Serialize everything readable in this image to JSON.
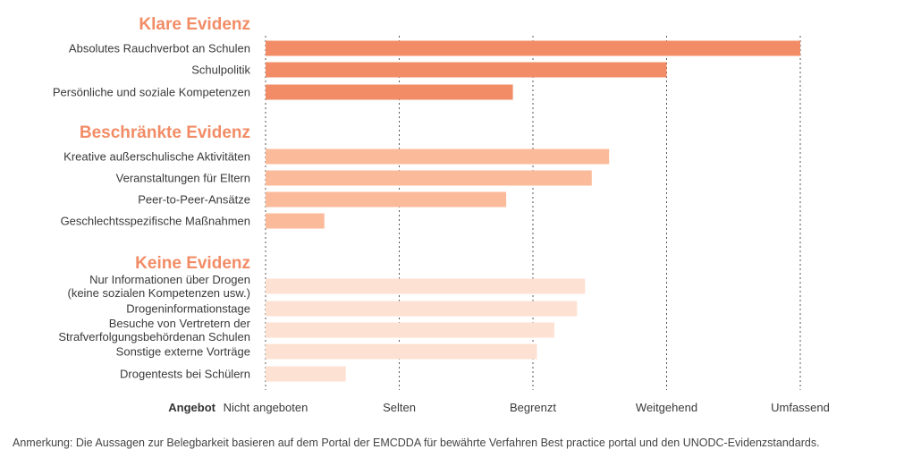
{
  "chart_data": {
    "type": "bar",
    "orientation": "horizontal",
    "x_axis_title": "Angebot",
    "x_ticks": [
      "Nicht angeboten",
      "Selten",
      "Begrenzt",
      "Weitgehend",
      "Umfassend"
    ],
    "xlim": [
      0,
      4
    ],
    "grid": "vertical dashed",
    "groups": [
      {
        "title": "Klare Evidenz",
        "bar_color": "#f28c66",
        "label_color": "#f28c66",
        "items": [
          {
            "label": [
              "Absolutes Rauchverbot an Schulen"
            ],
            "value": 4.0
          },
          {
            "label": [
              "Schulpolitik"
            ],
            "value": 3.0
          },
          {
            "label": [
              "Persönliche und soziale Kompetenzen"
            ],
            "value": 1.85
          }
        ]
      },
      {
        "title": "Beschränkte Evidenz",
        "bar_color": "#fbbb9b",
        "label_color": "#f28c66",
        "items": [
          {
            "label": [
              "Kreative außerschulische Aktivitäten"
            ],
            "value": 2.57
          },
          {
            "label": [
              "Veranstaltungen für Eltern"
            ],
            "value": 2.44
          },
          {
            "label": [
              "Peer-to-Peer-Ansätze"
            ],
            "value": 1.8
          },
          {
            "label": [
              "Geschlechtsspezifische Maßnahmen"
            ],
            "value": 0.44
          }
        ]
      },
      {
        "title": "Keine Evidenz",
        "bar_color": "#fde1d3",
        "label_color": "#f28c66",
        "items": [
          {
            "label": [
              "Nur Informationen über Drogen",
              "(keine sozialen Kompetenzen usw.)"
            ],
            "value": 2.39
          },
          {
            "label": [
              "Drogeninformationstage"
            ],
            "value": 2.33
          },
          {
            "label": [
              "Besuche von Vertretern der",
              "Strafverfolgungsbehördenan Schulen"
            ],
            "value": 2.16
          },
          {
            "label": [
              "Sonstige externe Vorträge"
            ],
            "value": 2.03
          },
          {
            "label": [
              "Drogentests bei Schülern"
            ],
            "value": 0.6
          }
        ]
      }
    ]
  },
  "footnote": "Anmerkung: Die Aussagen zur Belegbarkeit basieren auf dem Portal der EMCDDA für bewährte Verfahren Best practice portal und den UNODC-Evidenzstandards."
}
